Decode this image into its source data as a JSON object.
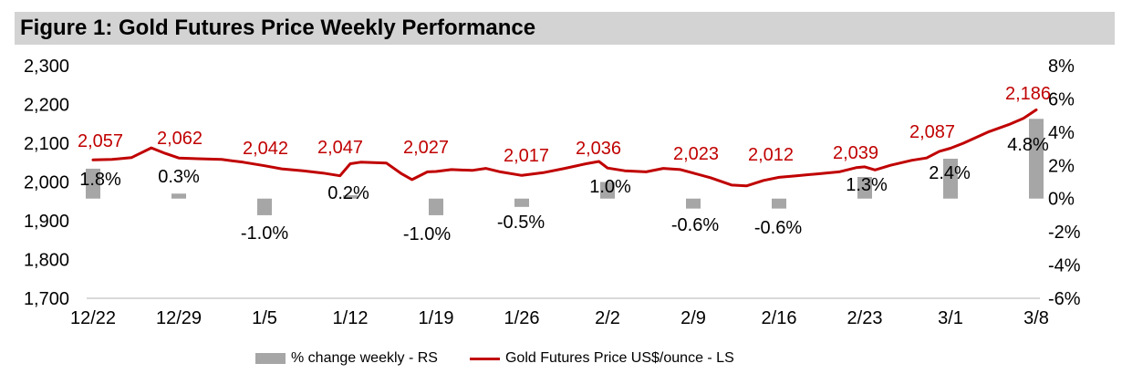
{
  "figure": {
    "title": "Figure 1: Gold Futures Price Weekly Performance"
  },
  "colors": {
    "line_red": "#c00000",
    "bar_gray": "#a6a6a6",
    "title_bg": "#d3d3d3",
    "axis_line": "#d9d9d9",
    "text_black": "#000000"
  },
  "legend": {
    "bar_label": "% change weekly - RS",
    "line_label": "Gold Futures Price US$/ounce - LS"
  },
  "chart_data": {
    "type": "combo-bar-line",
    "title": "Figure 1: Gold Futures Price Weekly Performance",
    "categories": [
      "12/22",
      "12/29",
      "1/5",
      "1/12",
      "1/19",
      "1/26",
      "2/2",
      "2/9",
      "2/16",
      "2/23",
      "3/1",
      "3/8"
    ],
    "series": [
      {
        "name": "% change weekly - RS",
        "type": "bar",
        "axis": "right",
        "color": "#a6a6a6",
        "values": [
          1.8,
          0.3,
          -1.0,
          0.2,
          -1.0,
          -0.5,
          1.0,
          -0.6,
          -0.6,
          1.3,
          2.4,
          4.8
        ],
        "labels": [
          "1.8%",
          "0.3%",
          "-1.0%",
          "0.2%",
          "-1.0%",
          "-0.5%",
          "1.0%",
          "-0.6%",
          "-0.6%",
          "1.3%",
          "2.4%",
          "4.8%"
        ]
      },
      {
        "name": "Gold Futures Price US$/ounce - LS",
        "type": "line",
        "axis": "left",
        "color": "#c00000",
        "values": [
          2057,
          2062,
          2042,
          2047,
          2027,
          2017,
          2036,
          2023,
          2012,
          2039,
          2087,
          2186
        ],
        "labels": [
          "2,057",
          "2,062",
          "2,042",
          "2,047",
          "2,027",
          "2,017",
          "2,036",
          "2,023",
          "2,012",
          "2,039",
          "2,087",
          "2,186"
        ]
      }
    ],
    "left_axis": {
      "range": [
        1700,
        2300
      ],
      "tick_values": [
        2300,
        2200,
        2100,
        2000,
        1900,
        1800,
        1700
      ],
      "tick_labels": [
        "2,300",
        "2,200",
        "2,100",
        "2,000",
        "1,900",
        "1,800",
        "1,700"
      ]
    },
    "right_axis": {
      "range": [
        -6,
        8
      ],
      "tick_values": [
        8,
        6,
        4,
        2,
        0,
        -2,
        -4,
        -6
      ],
      "tick_labels": [
        "8%",
        "6%",
        "4%",
        "2%",
        "0%",
        "-2%",
        "-4%",
        "-6%"
      ]
    },
    "grid": "off",
    "legend_position": "bottom",
    "line_points_daily_est": [
      [
        0,
        2057
      ],
      [
        0.22,
        2058
      ],
      [
        0.45,
        2063
      ],
      [
        0.68,
        2088
      ],
      [
        0.84,
        2074
      ],
      [
        1,
        2062
      ],
      [
        1.22,
        2060
      ],
      [
        1.5,
        2058
      ],
      [
        1.75,
        2051
      ],
      [
        2,
        2042
      ],
      [
        2.2,
        2034
      ],
      [
        2.45,
        2029
      ],
      [
        2.68,
        2023
      ],
      [
        2.88,
        2016
      ],
      [
        3,
        2047
      ],
      [
        3.12,
        2051
      ],
      [
        3.42,
        2049
      ],
      [
        3.6,
        2021
      ],
      [
        3.72,
        2006
      ],
      [
        3.9,
        2026
      ],
      [
        4,
        2027
      ],
      [
        4.18,
        2032
      ],
      [
        4.42,
        2030
      ],
      [
        4.58,
        2035
      ],
      [
        4.75,
        2026
      ],
      [
        5,
        2017
      ],
      [
        5.25,
        2024
      ],
      [
        5.5,
        2035
      ],
      [
        5.75,
        2047
      ],
      [
        5.9,
        2053
      ],
      [
        6,
        2036
      ],
      [
        6.2,
        2029
      ],
      [
        6.45,
        2026
      ],
      [
        6.65,
        2035
      ],
      [
        6.85,
        2032
      ],
      [
        7,
        2023
      ],
      [
        7.2,
        2011
      ],
      [
        7.45,
        1992
      ],
      [
        7.62,
        1990
      ],
      [
        7.82,
        2004
      ],
      [
        8,
        2012
      ],
      [
        8.2,
        2016
      ],
      [
        8.45,
        2021
      ],
      [
        8.7,
        2026
      ],
      [
        8.9,
        2037
      ],
      [
        9,
        2039
      ],
      [
        9.12,
        2031
      ],
      [
        9.3,
        2043
      ],
      [
        9.55,
        2056
      ],
      [
        9.72,
        2062
      ],
      [
        9.87,
        2079
      ],
      [
        10,
        2087
      ],
      [
        10.15,
        2100
      ],
      [
        10.45,
        2130
      ],
      [
        10.68,
        2148
      ],
      [
        10.85,
        2164
      ],
      [
        11,
        2186
      ]
    ],
    "price_label_pos": [
      [
        110,
        154
      ],
      [
        197,
        151
      ],
      [
        291,
        162
      ],
      [
        373,
        161
      ],
      [
        467,
        161
      ],
      [
        577,
        170
      ],
      [
        656,
        162
      ],
      [
        763,
        168
      ],
      [
        845,
        169
      ],
      [
        938,
        167
      ],
      [
        1022,
        144
      ],
      [
        1127,
        102
      ]
    ],
    "pct_label_pos": [
      [
        110,
        196
      ],
      [
        196,
        193
      ],
      [
        290,
        255
      ],
      [
        382,
        211
      ],
      [
        468,
        256
      ],
      [
        571,
        243
      ],
      [
        669,
        204
      ],
      [
        762,
        246
      ],
      [
        853,
        249
      ],
      [
        950,
        202
      ],
      [
        1041,
        189
      ],
      [
        1127,
        158
      ]
    ]
  }
}
